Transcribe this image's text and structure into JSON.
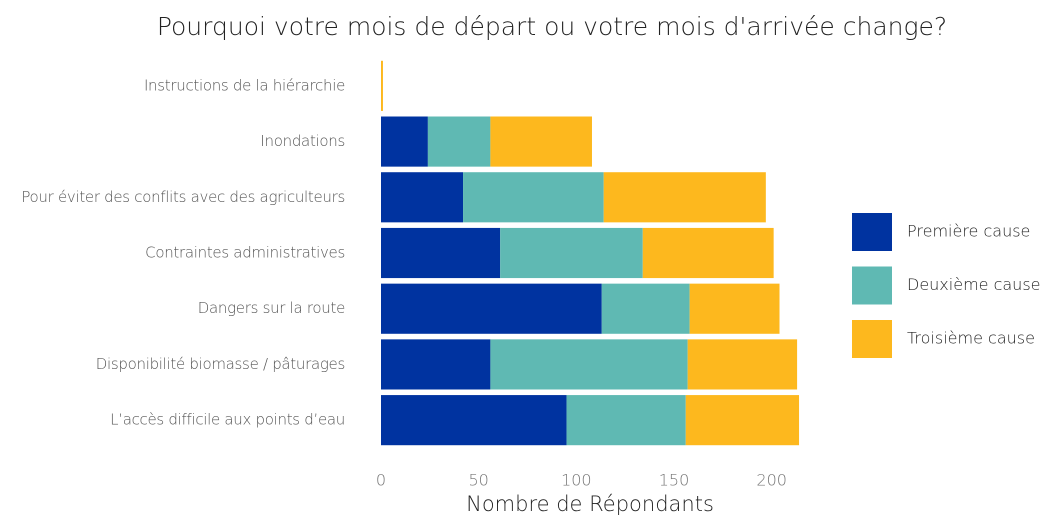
{
  "chart_data": {
    "type": "stacked_barh",
    "title": "Pourquoi votre mois de départ ou votre mois d'arrivée change?",
    "x_label": "Nombre de Répondants",
    "categories": [
      "Instructions de la hiérarchie",
      "Inondations",
      "Pour éviter des conflits avec des agriculteurs",
      "Contraintes administratives",
      "Dangers sur la route",
      "Disponibilité biomasse / pâturages",
      "L’accès difficile aux points d’eau"
    ],
    "series": [
      {
        "name": "Première cause",
        "color": "#0033a0",
        "values": [
          0,
          24,
          42,
          61,
          113,
          56,
          95
        ]
      },
      {
        "name": "Deuxième cause",
        "color": "#5fb9b3",
        "values": [
          0,
          32,
          72,
          73,
          45,
          101,
          61
        ]
      },
      {
        "name": "Troisième cause",
        "color": "#fdb81e",
        "values": [
          1,
          52,
          83,
          67,
          46,
          56,
          58
        ]
      }
    ],
    "xlim": [
      0,
      215
    ],
    "xticks": [
      0,
      50,
      100,
      150,
      200
    ],
    "grid": false,
    "legend": "right"
  }
}
